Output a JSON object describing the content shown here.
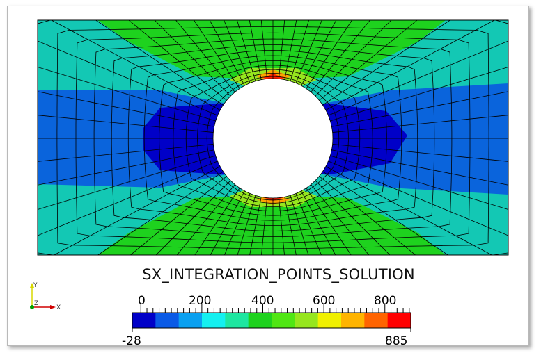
{
  "field_title": "SX_INTEGRATION_POINTS_SOLUTION",
  "colorbar": {
    "min_label": "-28",
    "max_label": "885",
    "tick_labels": [
      "0",
      "200",
      "400",
      "600",
      "800"
    ],
    "tick_values": [
      0,
      200,
      400,
      600,
      800
    ],
    "range": [
      -28,
      885
    ],
    "colors": [
      "#0000c8",
      "#0a5ae6",
      "#0aa0f0",
      "#14f0f0",
      "#1ee6a0",
      "#1ed21e",
      "#50e614",
      "#96e61e",
      "#f0f000",
      "#ffb400",
      "#ff6400",
      "#ff0000"
    ]
  },
  "axes": {
    "y_label": "Y",
    "z_label": "Z",
    "x_label": "X"
  },
  "contour_colors": {
    "deep_blue": "#0000c8",
    "blue": "#0a64dc",
    "teal": "#13c8b4",
    "green": "#1ed21e",
    "yellow_green": "#96e61e",
    "orange": "#ffa000",
    "red": "#ff1e00"
  }
}
